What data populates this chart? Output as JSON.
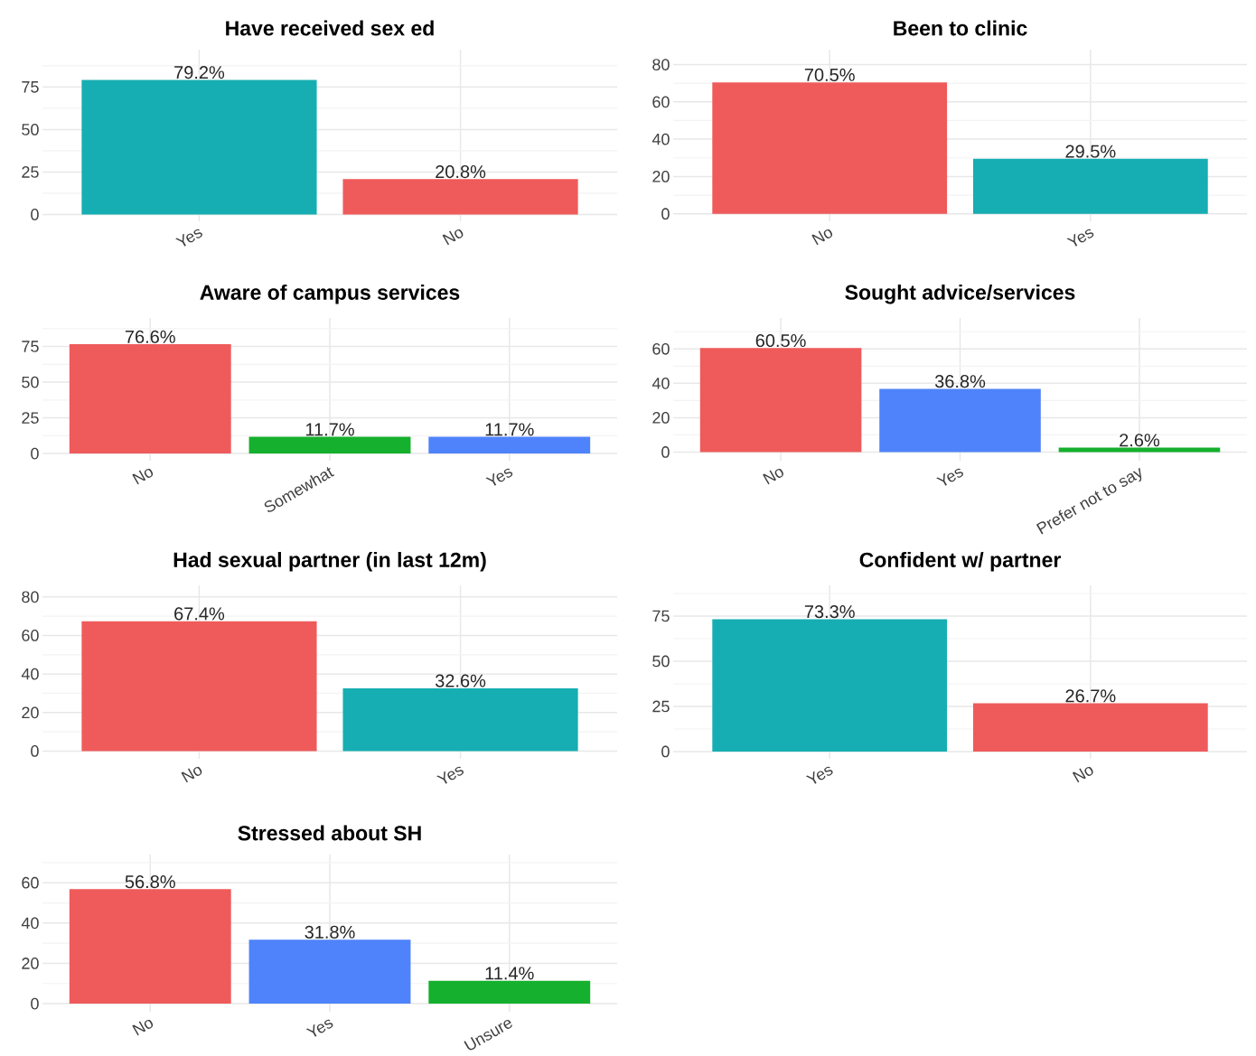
{
  "chart_data": [
    {
      "type": "bar",
      "title": "Have received sex ed",
      "categories": [
        "Yes",
        "No"
      ],
      "values": [
        79.2,
        20.8
      ],
      "colors": [
        "#16aeb2",
        "#ef5b5b"
      ],
      "value_labels": [
        "79.2%",
        "20.8%"
      ],
      "ylim": [
        -4,
        97
      ],
      "yticks": [
        0,
        25,
        50,
        75
      ],
      "grid": true
    },
    {
      "type": "bar",
      "title": "Been to clinic",
      "categories": [
        "No",
        "Yes"
      ],
      "values": [
        70.5,
        29.5
      ],
      "colors": [
        "#ef5b5b",
        "#16aeb2"
      ],
      "value_labels": [
        "70.5%",
        "29.5%"
      ],
      "ylim": [
        -4,
        88
      ],
      "yticks": [
        0,
        20,
        40,
        60,
        80
      ],
      "grid": true
    },
    {
      "type": "bar",
      "title": "Aware of campus services",
      "categories": [
        "No",
        "Somewhat",
        "Yes"
      ],
      "values": [
        76.6,
        11.7,
        11.7
      ],
      "colors": [
        "#ef5b5b",
        "#15b02d",
        "#4f83fb"
      ],
      "value_labels": [
        "76.6%",
        "11.7%",
        "11.7%"
      ],
      "ylim": [
        -5,
        95
      ],
      "yticks": [
        0,
        25,
        50,
        75
      ],
      "grid": true
    },
    {
      "type": "bar",
      "title": "Sought advice/services",
      "categories": [
        "No",
        "Yes",
        "Prefer not to say"
      ],
      "values": [
        60.5,
        36.8,
        2.6
      ],
      "colors": [
        "#ef5b5b",
        "#4f83fb",
        "#15b02d"
      ],
      "value_labels": [
        "60.5%",
        "36.8%",
        "2.6%"
      ],
      "ylim": [
        -5,
        78
      ],
      "yticks": [
        0,
        20,
        40,
        60
      ],
      "grid": true
    },
    {
      "type": "bar",
      "title": "Had sexual partner (in last 12m)",
      "categories": [
        "No",
        "Yes"
      ],
      "values": [
        67.4,
        32.6
      ],
      "colors": [
        "#ef5b5b",
        "#16aeb2"
      ],
      "value_labels": [
        "67.4%",
        "32.6%"
      ],
      "ylim": [
        -4,
        86
      ],
      "yticks": [
        0,
        20,
        40,
        60,
        80
      ],
      "grid": true
    },
    {
      "type": "bar",
      "title": "Confident w/ partner",
      "categories": [
        "Yes",
        "No"
      ],
      "values": [
        73.3,
        26.7
      ],
      "colors": [
        "#16aeb2",
        "#ef5b5b"
      ],
      "value_labels": [
        "73.3%",
        "26.7%"
      ],
      "ylim": [
        -4,
        92
      ],
      "yticks": [
        0,
        25,
        50,
        75
      ],
      "grid": true
    },
    {
      "type": "bar",
      "title": "Stressed about SH",
      "categories": [
        "No",
        "Yes",
        "Unsure"
      ],
      "values": [
        56.8,
        31.8,
        11.4
      ],
      "colors": [
        "#ef5b5b",
        "#4f83fb",
        "#15b02d"
      ],
      "value_labels": [
        "56.8%",
        "31.8%",
        "11.4%"
      ],
      "ylim": [
        -4,
        74
      ],
      "yticks": [
        0,
        20,
        40,
        60
      ],
      "grid": true
    }
  ]
}
